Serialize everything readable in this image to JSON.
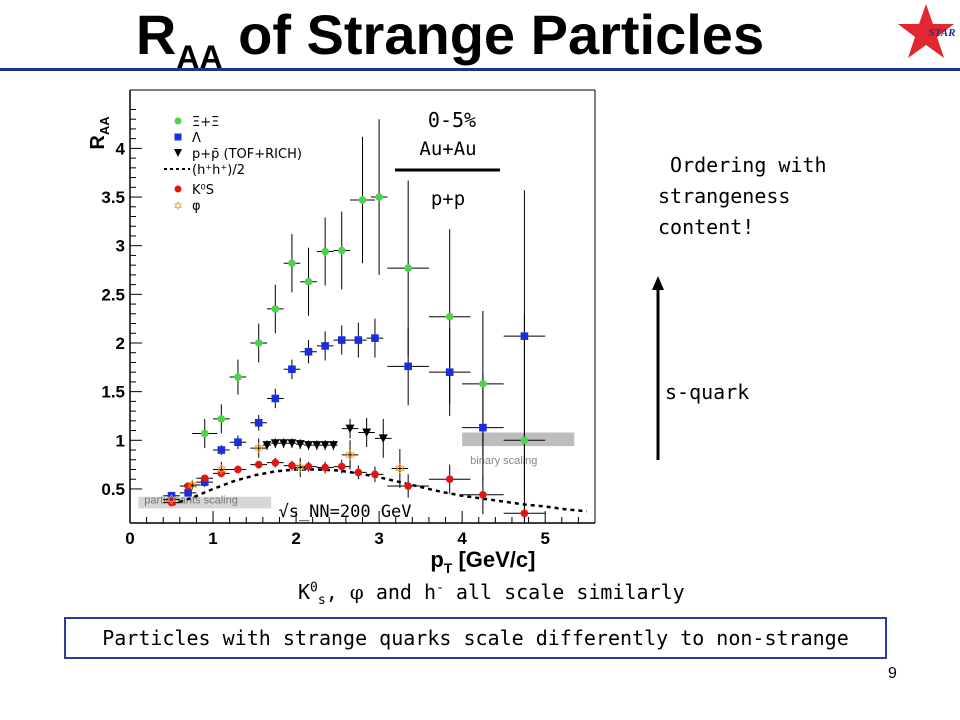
{
  "slide": {
    "title_main": "R",
    "title_sub": "AA",
    "title_rest": " of Strange Particles",
    "logo_text": "STAR",
    "ordering_text": " Ordering with\nstrangeness\ncontent!",
    "arrow_label": "s-quark",
    "k0_prefix": "K",
    "k0_sup": "0",
    "k0_sub": "s",
    "k0_rest_1": ", ",
    "phi_symbol": "φ",
    "k0_rest_2": " and h",
    "h_sup": "-",
    "k0_rest_3": " all scale similarly",
    "bottom_message": "Particles with strange quarks scale differently to non-strange",
    "page_number": "9"
  },
  "colors": {
    "title_rule": "#1f2f8f",
    "box_border": "#2e3a9c",
    "xi": "#4cd24c",
    "lambda": "#1a2ee0",
    "proton": "#000000",
    "k0s": "#e01515",
    "phi": "#f0a020"
  },
  "chart_data": {
    "type": "scatter",
    "xlabel": "p_T [GeV/c]",
    "ylabel": "R_AA",
    "xlim": [
      0,
      5.6
    ],
    "ylim": [
      0.15,
      4.6
    ],
    "x_ticks": [
      0,
      1,
      2,
      3,
      4,
      5
    ],
    "y_ticks": [
      0.5,
      1,
      1.5,
      2,
      2.5,
      3,
      3.5,
      4
    ],
    "ratio_numerator": "Au+Au",
    "ratio_denominator": "p+p",
    "centrality": "0-5%",
    "energy_label": "√s_NN=200 GeV",
    "band_labels": {
      "binary": "binary scaling",
      "participants": "participants scaling"
    },
    "legend": [
      {
        "key": "xi",
        "label": "Ξ+Ξ̄"
      },
      {
        "key": "lambda",
        "label": "Λ"
      },
      {
        "key": "proton",
        "label": "p+p̄   (TOF+RICH)"
      },
      {
        "key": "curve",
        "label": "(h⁺h⁺)/2"
      },
      {
        "key": "k0s",
        "label": "K⁰S"
      },
      {
        "key": "phi",
        "label": "φ"
      }
    ],
    "series": [
      {
        "key": "xi",
        "name": "Ξ+Ξ̄",
        "marker": "circle",
        "points": [
          [
            0.9,
            1.07
          ],
          [
            1.1,
            1.22
          ],
          [
            1.3,
            1.65
          ],
          [
            1.55,
            2.0
          ],
          [
            1.75,
            2.35
          ],
          [
            1.95,
            2.82
          ],
          [
            2.15,
            2.63
          ],
          [
            2.35,
            2.94
          ],
          [
            2.55,
            2.95
          ],
          [
            2.8,
            3.47
          ],
          [
            3.0,
            3.5
          ],
          [
            3.35,
            2.77
          ],
          [
            3.85,
            2.27
          ],
          [
            4.25,
            1.58
          ],
          [
            4.75,
            1.0
          ]
        ],
        "xerr": [
          0.15,
          0.1,
          0.1,
          0.1,
          0.1,
          0.1,
          0.1,
          0.1,
          0.1,
          0.15,
          0.1,
          0.25,
          0.25,
          0.25,
          0.25
        ],
        "yerr": [
          0.15,
          0.15,
          0.18,
          0.2,
          0.25,
          0.3,
          0.35,
          0.35,
          0.4,
          0.65,
          0.8,
          0.9,
          0.9,
          0.75,
          1.3
        ]
      },
      {
        "key": "lambda",
        "name": "Λ",
        "marker": "square",
        "points": [
          [
            0.5,
            0.43
          ],
          [
            0.7,
            0.46
          ],
          [
            0.9,
            0.57
          ],
          [
            1.1,
            0.9
          ],
          [
            1.3,
            0.98
          ],
          [
            1.55,
            1.18
          ],
          [
            1.75,
            1.43
          ],
          [
            1.95,
            1.73
          ],
          [
            2.15,
            1.91
          ],
          [
            2.35,
            1.97
          ],
          [
            2.55,
            2.03
          ],
          [
            2.75,
            2.03
          ],
          [
            2.95,
            2.05
          ],
          [
            3.35,
            1.76
          ],
          [
            3.85,
            1.7
          ],
          [
            4.25,
            1.13
          ],
          [
            4.75,
            2.07
          ]
        ],
        "xerr": [
          0.1,
          0.1,
          0.1,
          0.1,
          0.1,
          0.1,
          0.1,
          0.1,
          0.1,
          0.1,
          0.1,
          0.1,
          0.1,
          0.25,
          0.25,
          0.25,
          0.25
        ],
        "yerr": [
          0.03,
          0.03,
          0.05,
          0.05,
          0.07,
          0.08,
          0.1,
          0.1,
          0.12,
          0.15,
          0.15,
          0.18,
          0.2,
          0.4,
          0.45,
          0.55,
          1.5
        ]
      },
      {
        "key": "proton",
        "name": "p+p̄ (TOF+RICH)",
        "marker": "triangle-down",
        "points": [
          [
            1.65,
            0.95
          ],
          [
            1.75,
            0.97
          ],
          [
            1.85,
            0.97
          ],
          [
            1.95,
            0.97
          ],
          [
            2.05,
            0.96
          ],
          [
            2.15,
            0.95
          ],
          [
            2.25,
            0.95
          ],
          [
            2.35,
            0.95
          ],
          [
            2.45,
            0.95
          ],
          [
            2.65,
            1.12
          ],
          [
            2.85,
            1.08
          ],
          [
            3.05,
            1.02
          ]
        ],
        "xerr": [
          0.05,
          0.05,
          0.05,
          0.05,
          0.05,
          0.05,
          0.05,
          0.05,
          0.05,
          0.1,
          0.1,
          0.1
        ],
        "yerr": [
          0.05,
          0.05,
          0.05,
          0.05,
          0.05,
          0.05,
          0.05,
          0.05,
          0.05,
          0.1,
          0.15,
          0.2
        ]
      },
      {
        "key": "k0s",
        "name": "K⁰S",
        "marker": "circle",
        "points": [
          [
            0.5,
            0.36
          ],
          [
            0.7,
            0.53
          ],
          [
            0.9,
            0.61
          ],
          [
            1.1,
            0.66
          ],
          [
            1.3,
            0.7
          ],
          [
            1.55,
            0.75
          ],
          [
            1.75,
            0.77
          ],
          [
            1.95,
            0.74
          ],
          [
            2.15,
            0.73
          ],
          [
            2.35,
            0.72
          ],
          [
            2.55,
            0.73
          ],
          [
            2.75,
            0.67
          ],
          [
            2.95,
            0.65
          ],
          [
            3.35,
            0.53
          ],
          [
            3.85,
            0.6
          ],
          [
            4.25,
            0.44
          ],
          [
            4.75,
            0.25
          ]
        ],
        "xerr": [
          0.1,
          0.1,
          0.1,
          0.1,
          0.1,
          0.1,
          0.1,
          0.1,
          0.1,
          0.1,
          0.1,
          0.1,
          0.1,
          0.25,
          0.25,
          0.25,
          0.25
        ],
        "yerr": [
          0.03,
          0.03,
          0.03,
          0.03,
          0.04,
          0.04,
          0.05,
          0.05,
          0.05,
          0.06,
          0.07,
          0.07,
          0.08,
          0.12,
          0.15,
          0.2,
          0.35
        ]
      },
      {
        "key": "phi",
        "name": "φ",
        "marker": "star",
        "points": [
          [
            0.5,
            0.39
          ],
          [
            0.75,
            0.54
          ],
          [
            1.1,
            0.7
          ],
          [
            1.55,
            0.92
          ],
          [
            2.05,
            0.72
          ],
          [
            2.65,
            0.85
          ],
          [
            3.25,
            0.71
          ]
        ],
        "xerr": [
          0.1,
          0.1,
          0.1,
          0.1,
          0.1,
          0.1,
          0.1
        ],
        "yerr": [
          0.05,
          0.05,
          0.08,
          0.1,
          0.1,
          0.15,
          0.2
        ]
      }
    ],
    "curve": {
      "name": "(h⁺h⁺)/2",
      "x": [
        0.5,
        0.75,
        1.0,
        1.25,
        1.5,
        1.75,
        2.0,
        2.25,
        2.5,
        2.75,
        3.0,
        3.25,
        3.5,
        3.75,
        4.0,
        4.25,
        4.5,
        4.75,
        5.0,
        5.25,
        5.5
      ],
      "y": [
        0.34,
        0.41,
        0.5,
        0.58,
        0.64,
        0.68,
        0.7,
        0.7,
        0.69,
        0.66,
        0.62,
        0.57,
        0.52,
        0.47,
        0.43,
        0.4,
        0.37,
        0.34,
        0.32,
        0.29,
        0.27
      ]
    },
    "binary_band": {
      "x": [
        4.0,
        5.35
      ],
      "y": [
        0.94,
        1.08
      ]
    },
    "participants_band": {
      "x": [
        0.1,
        1.7
      ],
      "y": [
        0.3,
        0.42
      ]
    }
  }
}
